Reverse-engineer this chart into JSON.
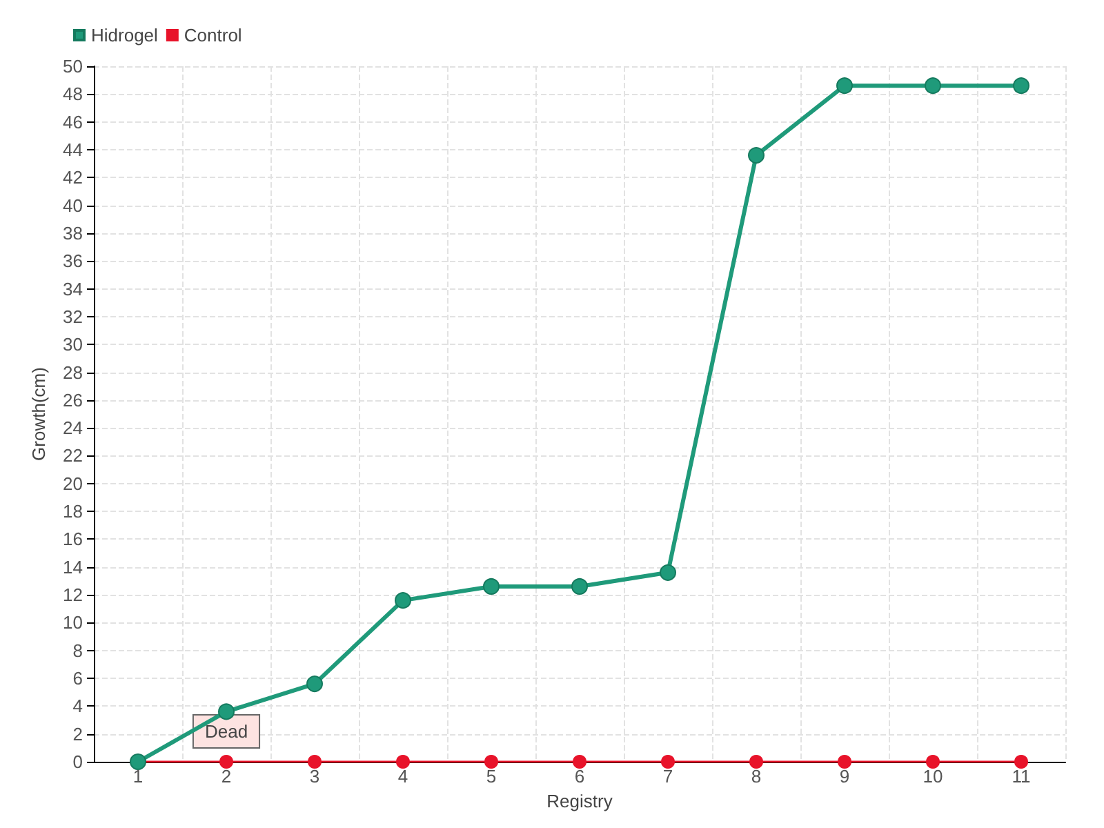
{
  "chart_data": {
    "type": "line",
    "xlabel": "Registry",
    "ylabel": "Growth(cm)",
    "categories": [
      "1",
      "2",
      "3",
      "4",
      "5",
      "6",
      "7",
      "8",
      "9",
      "10",
      "11"
    ],
    "series": [
      {
        "name": "Hidrogel",
        "color": "#1f9a7a",
        "values": [
          0,
          3.6,
          5.6,
          11.6,
          12.6,
          12.6,
          13.6,
          43.6,
          48.6,
          48.6,
          48.6
        ]
      },
      {
        "name": "Control",
        "color": "#e8132a",
        "values": [
          0,
          0,
          0,
          0,
          0,
          0,
          0,
          0,
          0,
          0,
          0
        ]
      }
    ],
    "annotations": [
      {
        "text": "Dead",
        "x": "2",
        "y": 0
      }
    ],
    "ylim": [
      0,
      50
    ],
    "yticks": [
      0,
      2,
      4,
      6,
      8,
      10,
      12,
      14,
      16,
      18,
      20,
      22,
      24,
      26,
      28,
      30,
      32,
      34,
      36,
      38,
      40,
      42,
      44,
      46,
      48,
      50
    ],
    "grid": true,
    "legend": "top left",
    "marker": "circle",
    "line_style": "solid"
  }
}
